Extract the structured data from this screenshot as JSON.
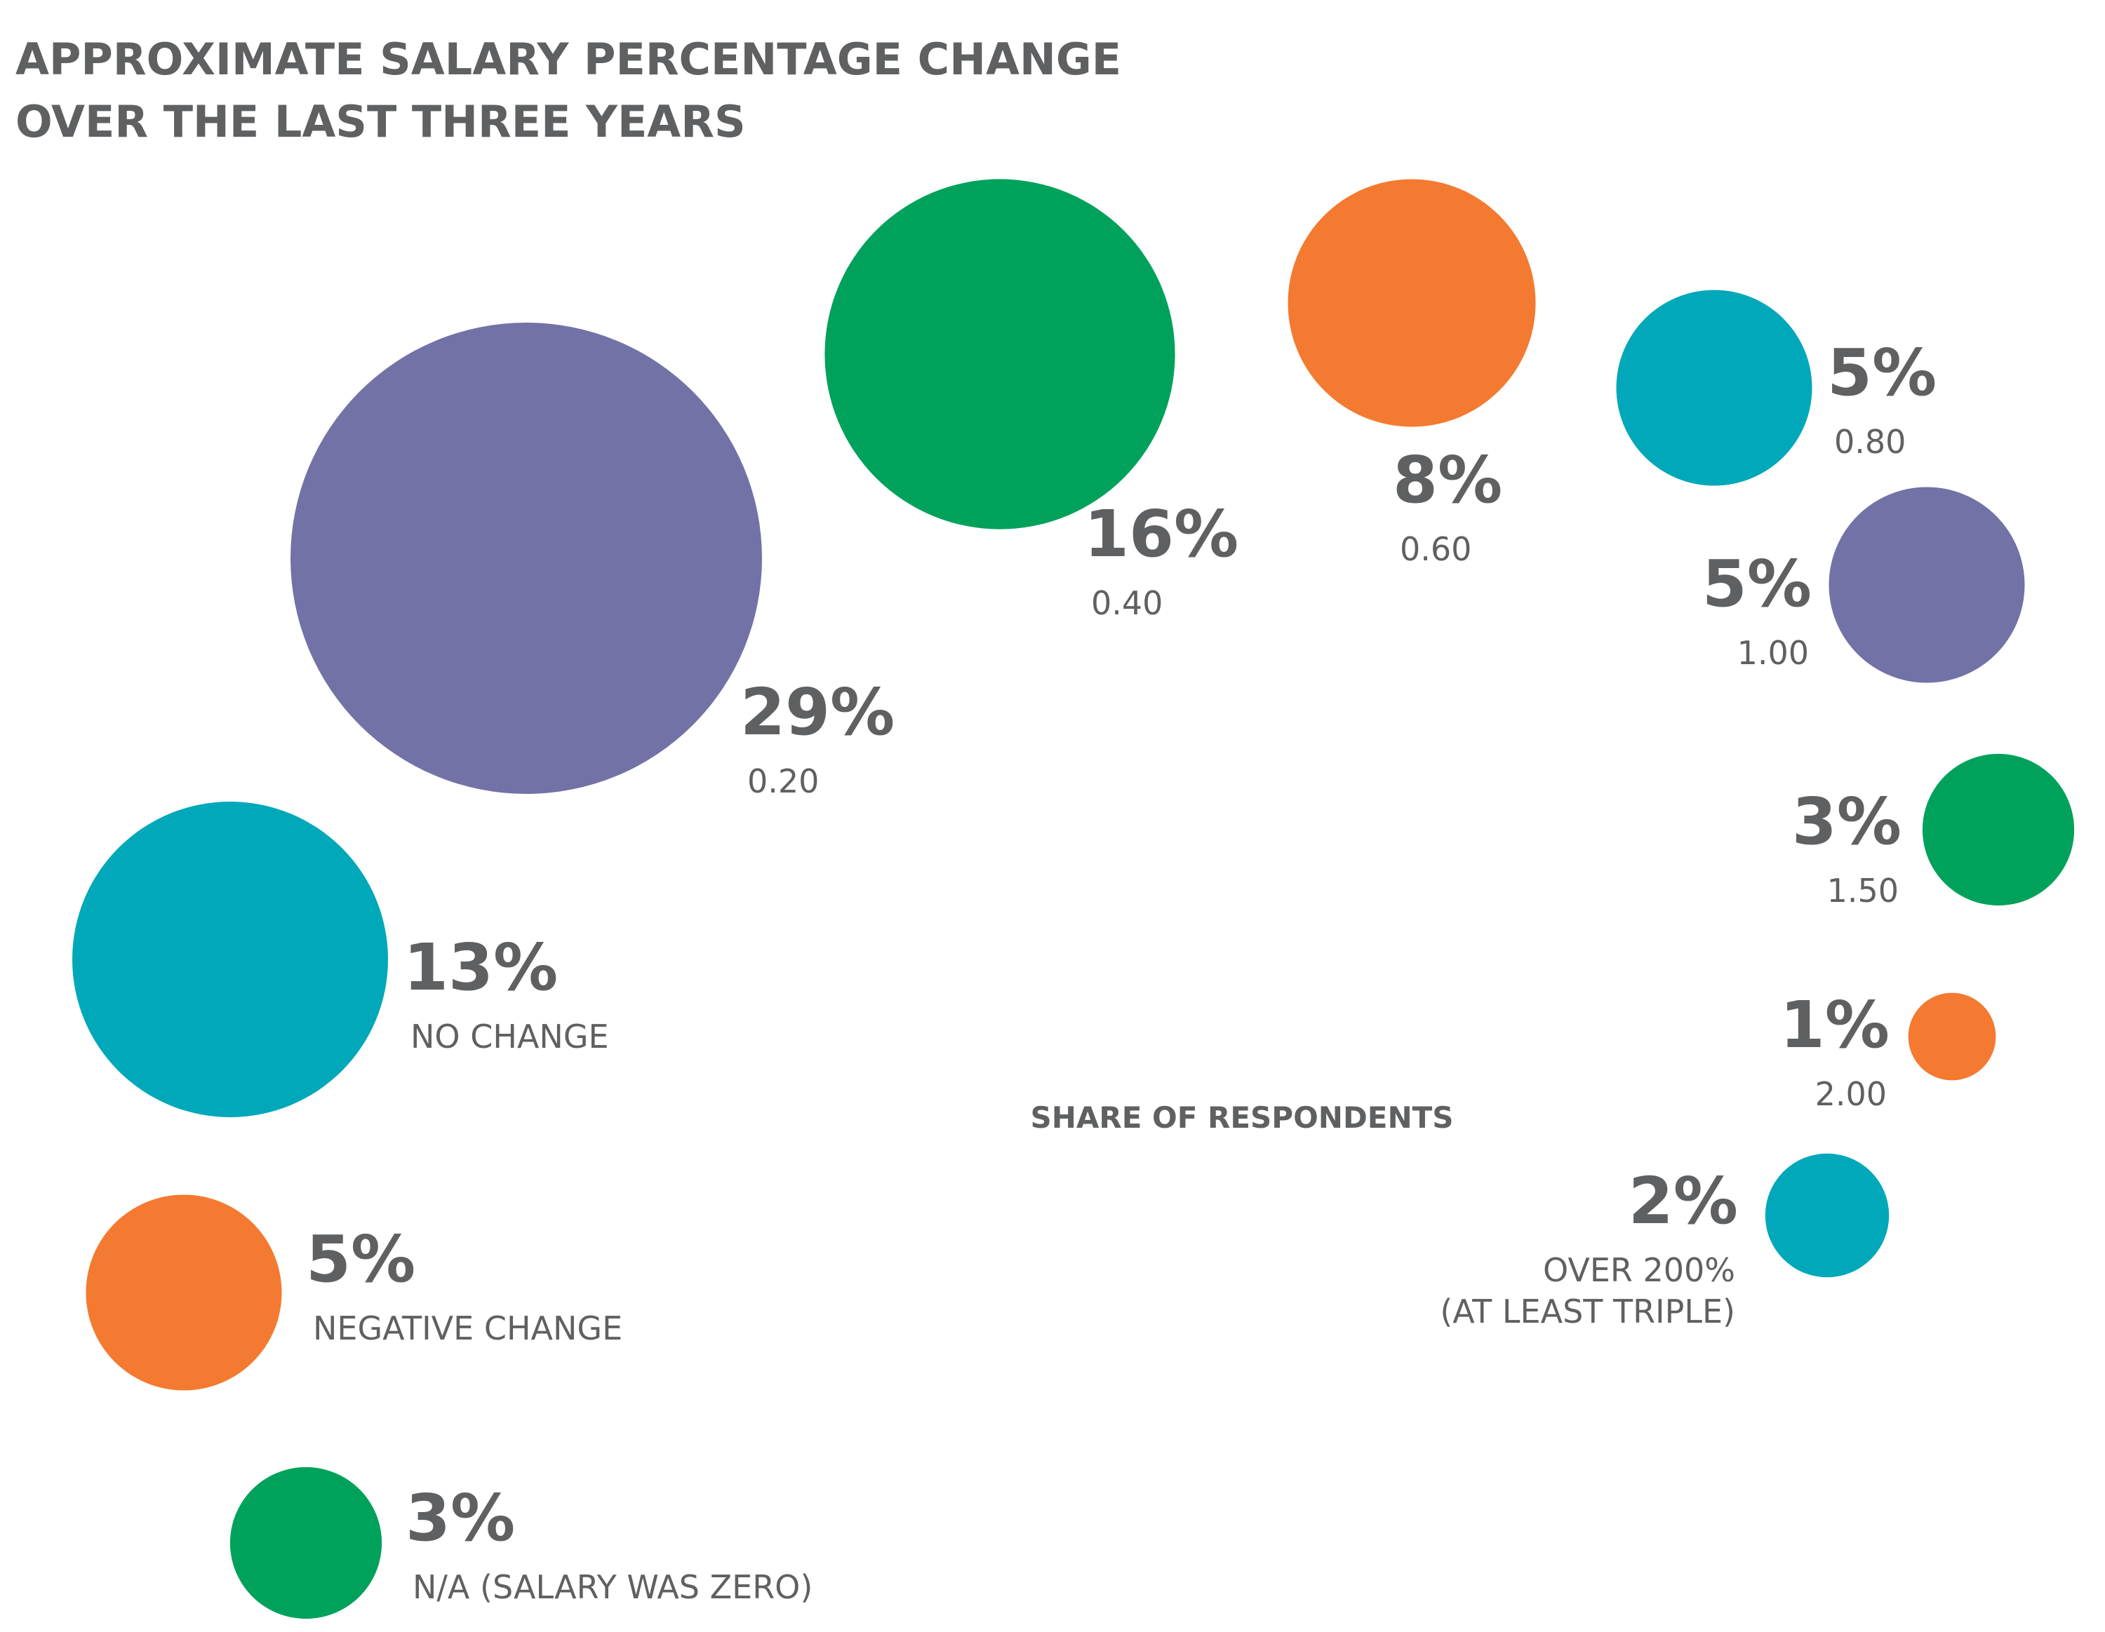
{
  "chart_data": {
    "type": "bubble",
    "title": [
      "APPROXIMATE SALARY PERCENTAGE CHANGE",
      "OVER THE LAST THREE YEARS"
    ],
    "note": "SHARE OF RESPONDENTS",
    "value_unit": "%",
    "points": [
      {
        "category": [
          "N/A (SALARY WAS ZERO)"
        ],
        "value": 3,
        "value_label": "3%",
        "color": "#00a25b"
      },
      {
        "category": [
          "NEGATIVE CHANGE"
        ],
        "value": 5,
        "value_label": "5%",
        "color": "#f37a30"
      },
      {
        "category": [
          "NO CHANGE"
        ],
        "value": 13,
        "value_label": "13%",
        "color": "#00a8b9"
      },
      {
        "category": [
          "0.20"
        ],
        "value": 29,
        "value_label": "29%",
        "color": "#7372a6"
      },
      {
        "category": [
          "0.40"
        ],
        "value": 16,
        "value_label": "16%",
        "color": "#00a25b"
      },
      {
        "category": [
          "0.60"
        ],
        "value": 8,
        "value_label": "8%",
        "color": "#f37a30"
      },
      {
        "category": [
          "0.80"
        ],
        "value": 5,
        "value_label": "5%",
        "color": "#00a8b9"
      },
      {
        "category": [
          "1.00"
        ],
        "value": 5,
        "value_label": "5%",
        "color": "#7372a6"
      },
      {
        "category": [
          "1.50"
        ],
        "value": 3,
        "value_label": "3%",
        "color": "#00a25b"
      },
      {
        "category": [
          "2.00"
        ],
        "value": 1,
        "value_label": "1%",
        "color": "#f37a30"
      },
      {
        "category": [
          "OVER 200%",
          "(AT LEAST TRIPLE)"
        ],
        "value": 2,
        "value_label": "2%",
        "color": "#00a8b9"
      }
    ]
  }
}
